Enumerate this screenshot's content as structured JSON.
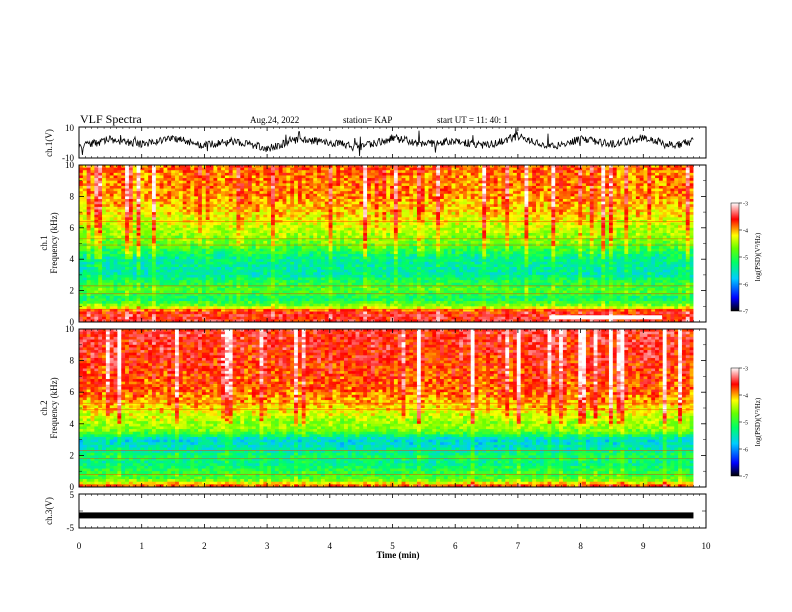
{
  "header": {
    "title": "VLF Spectra",
    "date": "Aug.24, 2022",
    "station": "station= KAP",
    "start": "start  UT =   11: 40: 1"
  },
  "chart_data": [
    {
      "type": "line",
      "panel": "ch1-waveform",
      "ylabel": "ch.1(V)",
      "ylim": [
        -10,
        10
      ],
      "yticks": [
        "10",
        "-10"
      ],
      "x": [
        0.0,
        0.5,
        1.0,
        1.5,
        2.0,
        2.5,
        3.0,
        3.5,
        4.0,
        4.5,
        5.0,
        5.5,
        6.0,
        6.5,
        7.0,
        7.5,
        8.0,
        8.5,
        9.0,
        9.5,
        9.8
      ],
      "y": [
        -3,
        2,
        -1,
        3,
        -2,
        1,
        -4,
        2,
        0,
        -3,
        3,
        -1,
        1,
        -2,
        4,
        -3,
        2,
        -1,
        3,
        -2,
        1
      ]
    },
    {
      "type": "heatmap",
      "panel": "ch1-spectrogram",
      "ylabel_line1": "ch.1",
      "ylabel_line2": "Frequency  (kHz)",
      "ylim": [
        0,
        10
      ],
      "yticks": [
        "0",
        "2",
        "4",
        "6",
        "8",
        "10"
      ],
      "xlim": [
        0,
        9.8
      ],
      "colorbar": {
        "label": "log(PSD)(V²/Hz)",
        "range": [
          -7,
          -3
        ],
        "ticks": [
          "-3",
          "-4",
          "-5",
          "-6",
          "-7"
        ]
      },
      "profile_by_frequency_khz": [
        {
          "f": 0.0,
          "v": -3.5
        },
        {
          "f": 0.7,
          "v": -3.6
        },
        {
          "f": 1.0,
          "v": -4.6
        },
        {
          "f": 1.5,
          "v": -5.2
        },
        {
          "f": 2.0,
          "v": -4.8
        },
        {
          "f": 2.5,
          "v": -5.0
        },
        {
          "f": 3.0,
          "v": -5.4
        },
        {
          "f": 4.0,
          "v": -5.3
        },
        {
          "f": 5.0,
          "v": -4.6
        },
        {
          "f": 6.0,
          "v": -4.3
        },
        {
          "f": 7.0,
          "v": -4.0
        },
        {
          "f": 8.0,
          "v": -3.8
        },
        {
          "f": 10.0,
          "v": -3.7
        }
      ],
      "annotations": [
        {
          "x0": 7.5,
          "x1": 9.3,
          "f": 0.3,
          "v": -3.0
        }
      ]
    },
    {
      "type": "heatmap",
      "panel": "ch2-spectrogram",
      "ylabel_line1": "ch.2",
      "ylabel_line2": "Frequency  (kHz)",
      "ylim": [
        0,
        10
      ],
      "yticks": [
        "0",
        "2",
        "4",
        "6",
        "8",
        "10"
      ],
      "xlim": [
        0,
        9.8
      ],
      "colorbar": {
        "label": "log(PSD)(V²/Hz)",
        "range": [
          -7,
          -3
        ],
        "ticks": [
          "-3",
          "-4",
          "-5",
          "-6",
          "-7"
        ]
      },
      "profile_by_frequency_khz": [
        {
          "f": 0.0,
          "v": -3.6
        },
        {
          "f": 0.5,
          "v": -4.8
        },
        {
          "f": 1.0,
          "v": -5.0
        },
        {
          "f": 1.5,
          "v": -5.3
        },
        {
          "f": 2.0,
          "v": -5.1
        },
        {
          "f": 2.5,
          "v": -5.5
        },
        {
          "f": 3.0,
          "v": -5.6
        },
        {
          "f": 3.5,
          "v": -4.7
        },
        {
          "f": 5.0,
          "v": -4.0
        },
        {
          "f": 6.0,
          "v": -3.7
        },
        {
          "f": 8.0,
          "v": -3.5
        },
        {
          "f": 10.0,
          "v": -3.4
        }
      ]
    },
    {
      "type": "line",
      "panel": "ch3-waveform",
      "ylabel": "ch.3(V)",
      "ylim": [
        -5,
        5
      ],
      "yticks": [
        "5",
        "-5"
      ],
      "x": [
        0,
        9.8
      ],
      "y": [
        -1.3,
        -1.3
      ]
    }
  ],
  "xaxis": {
    "label": "Time  (min)",
    "ticks": [
      "0",
      "1",
      "2",
      "3",
      "4",
      "5",
      "6",
      "7",
      "8",
      "9",
      "10"
    ]
  }
}
